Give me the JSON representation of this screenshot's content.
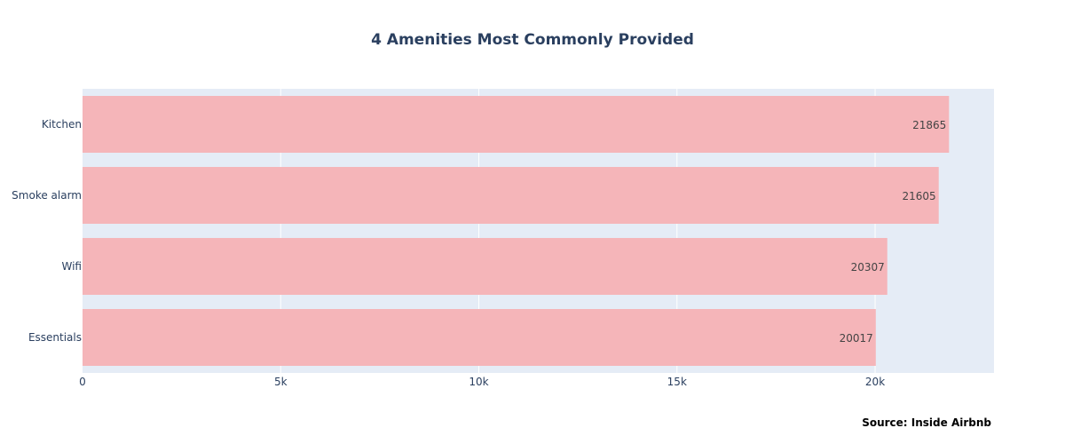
{
  "chart_data": {
    "type": "bar",
    "orientation": "horizontal",
    "title": "4 Amenities Most Commonly Provided",
    "categories": [
      "Kitchen",
      "Smoke alarm",
      "Wifi",
      "Essentials"
    ],
    "values": [
      21865,
      21605,
      20307,
      20017
    ],
    "data_labels": [
      "21865",
      "21605",
      "20307",
      "20017"
    ],
    "xlim": [
      0,
      23000
    ],
    "x_ticks": [
      0,
      5000,
      10000,
      15000,
      20000
    ],
    "x_tick_labels": [
      "0",
      "5k",
      "10k",
      "15k",
      "20k"
    ],
    "grid": true,
    "bar_color": "#f5b5b9",
    "plot_bg": "#e5ecf6",
    "source": "Source: Inside Airbnb"
  }
}
